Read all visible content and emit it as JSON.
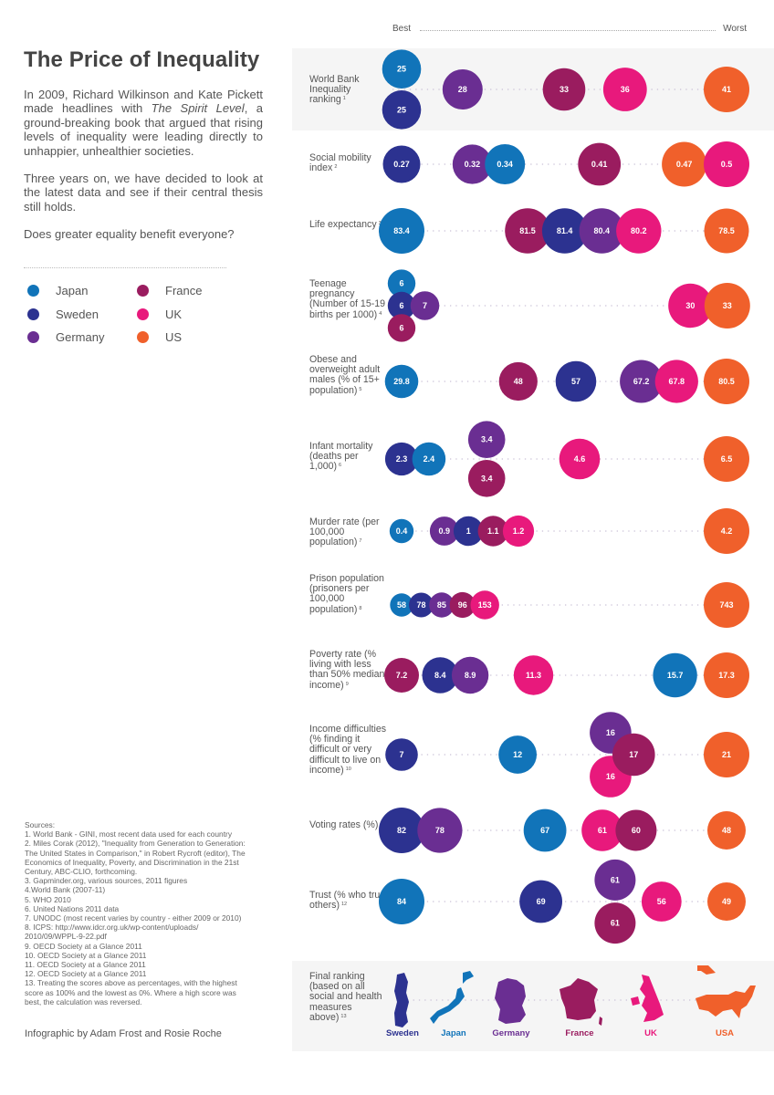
{
  "title": "The Price of Inequality",
  "intro": {
    "p1_before": "In 2009, Richard Wilkinson and Kate Pickett made headlines with ",
    "p1_italic": "The Spirit Level",
    "p1_after": ", a ground-breaking book that argued that rising levels of inequality were leading directly to unhappier, unhealthier societies.",
    "p2": "Three years on, we have decided to look at the latest data and see if their central thesis still holds.",
    "p3": "Does greater equality benefit everyone?"
  },
  "colors": {
    "Japan": "#1174b9",
    "Sweden": "#2c3290",
    "Germany": "#6a2e92",
    "France": "#9a1c5f",
    "UK": "#e8197c",
    "US": "#f0602b"
  },
  "legend": [
    {
      "country": "Japan",
      "label": "Japan"
    },
    {
      "country": "Sweden",
      "label": "Sweden"
    },
    {
      "country": "Germany",
      "label": "Germany"
    },
    {
      "country": "France",
      "label": "France"
    },
    {
      "country": "UK",
      "label": "UK"
    },
    {
      "country": "US",
      "label": "US"
    }
  ],
  "axis": {
    "best": "Best",
    "worst": "Worst"
  },
  "chart_data": {
    "type": "scatter",
    "title": "The Price of Inequality",
    "xlabel": "Best → Worst",
    "ylabel": "",
    "series_names": [
      "Japan",
      "Sweden",
      "Germany",
      "France",
      "UK",
      "US"
    ],
    "rows": [
      {
        "label": "World Bank Inequality ranking",
        "note": "1",
        "best": 25,
        "worst": 41,
        "values": {
          "Japan": 25,
          "Sweden": 25,
          "Germany": 28,
          "France": 33,
          "UK": 36,
          "US": 41
        }
      },
      {
        "label": "Social mobility index",
        "note": "2",
        "best": 0.27,
        "worst": 0.5,
        "values": {
          "Sweden": 0.27,
          "Germany": 0.32,
          "Japan": 0.34,
          "France": 0.41,
          "US": 0.47,
          "UK": 0.5
        }
      },
      {
        "label": "Life expectancy",
        "note": "3",
        "best": 83.4,
        "worst": 78.5,
        "values": {
          "Japan": 83.4,
          "France": 81.5,
          "Sweden": 81.4,
          "Germany": 80.4,
          "UK": 80.2,
          "US": 78.5
        }
      },
      {
        "label": "Teenage pregnancy (Number of 15-19 births per 1000)",
        "note": "4",
        "best": 6,
        "worst": 33,
        "values": {
          "Japan": 6,
          "Sweden": 6,
          "France": 6,
          "Germany": 7,
          "UK": 30,
          "US": 33
        }
      },
      {
        "label": "Obese and overweight adult males (% of 15+ population)",
        "note": "5",
        "best": 29.8,
        "worst": 80.5,
        "values": {
          "Japan": 29.8,
          "France": 48,
          "Sweden": 57,
          "Germany": 67.2,
          "UK": 67.8,
          "US": 80.5
        }
      },
      {
        "label": "Infant mortality (deaths per 1,000)",
        "note": "6",
        "best": 2.3,
        "worst": 6.5,
        "values": {
          "Sweden": 2.3,
          "Japan": 2.4,
          "Germany": 3.4,
          "France": 3.4,
          "UK": 4.6,
          "US": 6.5
        }
      },
      {
        "label": "Murder rate (per 100,000 population)",
        "note": "7",
        "best": 0.4,
        "worst": 4.2,
        "values": {
          "Japan": 0.4,
          "Germany": 0.9,
          "Sweden": 1,
          "France": 1.1,
          "UK": 1.2,
          "US": 4.2
        }
      },
      {
        "label": "Prison population (prisoners per 100,000 population)",
        "note": "8",
        "best": 58,
        "worst": 743,
        "values": {
          "Japan": 58,
          "Sweden": 78,
          "Germany": 85,
          "France": 96,
          "UK": 153,
          "US": 743
        }
      },
      {
        "label": "Poverty rate (% living with less than 50% median income)",
        "note": "9",
        "best": 7.2,
        "worst": 17.3,
        "values": {
          "France": 7.2,
          "Sweden": 8.4,
          "Germany": 8.9,
          "UK": 11.3,
          "Japan": 15.7,
          "US": 17.3
        }
      },
      {
        "label": "Income difficulties (% finding it difficult or very difficult to live on income)",
        "note": "10",
        "best": 7,
        "worst": 21,
        "values": {
          "Sweden": 7,
          "Japan": 12,
          "Germany": 16,
          "UK": 16,
          "France": 17,
          "US": 21
        }
      },
      {
        "label": "Voting rates (%)",
        "note": "11",
        "best": 82,
        "worst": 48,
        "values": {
          "Sweden": 82,
          "Germany": 78,
          "Japan": 67,
          "UK": 61,
          "France": 60,
          "US": 48
        }
      },
      {
        "label": "Trust (% who trust others)",
        "note": "12",
        "best": 84,
        "worst": 49,
        "values": {
          "Japan": 84,
          "Sweden": 69,
          "Germany": 61,
          "France": 61,
          "UK": 56,
          "US": 49
        }
      }
    ],
    "final_ranking": {
      "label": "Final ranking (based on all social and health measures above)",
      "note": "13",
      "order": [
        "Sweden",
        "Japan",
        "Germany",
        "France",
        "UK",
        "USA"
      ],
      "colors": [
        "#2c3290",
        "#1174b9",
        "#6a2e92",
        "#9a1c5f",
        "#e8197c",
        "#f0602b"
      ]
    }
  },
  "sources": {
    "heading": "Sources:",
    "items": [
      "1. World Bank - GINI, most recent data used for each country",
      "2. Miles Corak (2012), \"Inequality from Generation to Generation:  The United States in Comparison,\" in Robert Rycroft (editor), The Economics of Inequality, Poverty, and Discrimination in the 21st Century, ABC-CLIO, forthcoming.",
      "3. Gapminder.org, various sources, 2011 figures",
      "4.World Bank (2007-11)",
      "5. WHO 2010",
      "6. United Nations 2011 data",
      "7. UNODC (most recent varies by country - either 2009 or 2010)",
      "8. ICPS: http://www.idcr.org.uk/wp-content/uploads/ 2010/09/WPPL-9-22.pdf",
      "9. OECD Society at a Glance 2011",
      "10. OECD Society at a Glance 2011",
      "11. OECD Society at a Glance 2011",
      "12. OECD Society at a Glance 2011",
      "13. Treating the scores above as percentages, with the highest score as 100% and the lowest as 0%. Where a high score was best, the calculation was reversed."
    ]
  },
  "credit": "Infographic by Adam Frost and Rosie Roche"
}
